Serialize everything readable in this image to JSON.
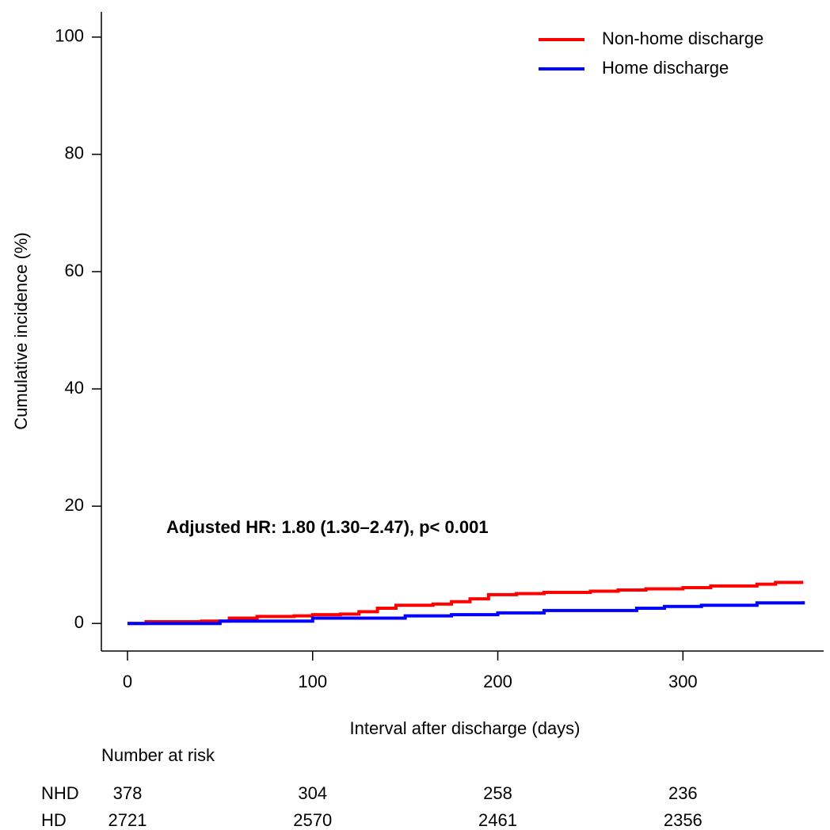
{
  "chart_data": {
    "type": "step",
    "xlabel": "Interval after discharge (days)",
    "ylabel": "Cumulative incidence (%)",
    "annotation": "Adjusted HR: 1.80 (1.30–2.47), p< 0.001",
    "xlim": [
      -14.1,
      376
    ],
    "ylim": [
      -4.7,
      104.3
    ],
    "xticks": [
      0,
      100,
      200,
      300
    ],
    "yticks": [
      0,
      20,
      40,
      60,
      80,
      100
    ],
    "legend": "top-right",
    "series": [
      {
        "name": "Non-home discharge",
        "color": "#ff0000",
        "x": [
          0,
          10,
          40,
          55,
          70,
          90,
          100,
          115,
          125,
          135,
          145,
          165,
          175,
          185,
          195,
          210,
          225,
          250,
          265,
          280,
          300,
          315,
          340,
          350,
          365
        ],
        "values": [
          0,
          0.3,
          0.4,
          0.9,
          1.2,
          1.3,
          1.5,
          1.6,
          2.0,
          2.6,
          3.1,
          3.3,
          3.7,
          4.2,
          4.9,
          5.1,
          5.3,
          5.5,
          5.7,
          5.9,
          6.1,
          6.4,
          6.7,
          7.0,
          7.0
        ]
      },
      {
        "name": "Home discharge",
        "color": "#0000ff",
        "x": [
          0,
          50,
          100,
          150,
          175,
          200,
          225,
          275,
          290,
          310,
          340,
          365
        ],
        "values": [
          0,
          0.4,
          0.9,
          1.3,
          1.5,
          1.8,
          2.2,
          2.6,
          2.9,
          3.1,
          3.5,
          3.8
        ]
      }
    ],
    "risk_table": {
      "title": "Number at risk",
      "rows": [
        {
          "label": "NHD",
          "values": [
            378,
            304,
            258,
            236
          ]
        },
        {
          "label": "HD",
          "values": [
            2721,
            2570,
            2461,
            2356
          ]
        }
      ]
    }
  }
}
